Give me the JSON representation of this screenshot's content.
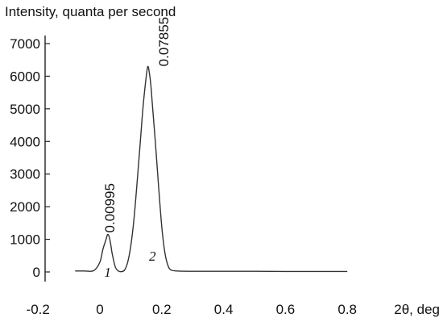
{
  "chart_data": {
    "type": "line",
    "title": "",
    "ylabel": "Intensity, quanta per second",
    "xlabel": "2θ, deg",
    "xlim": [
      -0.2,
      0.8
    ],
    "ylim": [
      0,
      7000
    ],
    "x_ticks": [
      {
        "value": -0.2,
        "label": "-0.2"
      },
      {
        "value": 0,
        "label": "0"
      },
      {
        "value": 0.2,
        "label": "0.2"
      },
      {
        "value": 0.4,
        "label": "0.4"
      },
      {
        "value": 0.6,
        "label": "0.6"
      },
      {
        "value": 0.8,
        "label": "0.8"
      }
    ],
    "y_ticks": [
      {
        "value": 0,
        "label": "0"
      },
      {
        "value": 1000,
        "label": "1000"
      },
      {
        "value": 2000,
        "label": "2000"
      },
      {
        "value": 3000,
        "label": "3000"
      },
      {
        "value": 4000,
        "label": "4000"
      },
      {
        "value": 5000,
        "label": "5000"
      },
      {
        "value": 6000,
        "label": "6000"
      },
      {
        "value": 7000,
        "label": "7000"
      }
    ],
    "grid": false,
    "line_color": "#333333",
    "series": [
      {
        "x": [
          -0.08,
          -0.05,
          -0.02,
          0.0,
          0.01,
          0.02,
          0.025,
          0.03,
          0.035,
          0.04,
          0.05,
          0.06,
          0.07,
          0.08,
          0.09,
          0.1,
          0.11,
          0.12,
          0.13,
          0.14,
          0.15,
          0.155,
          0.16,
          0.165,
          0.17,
          0.18,
          0.19,
          0.2,
          0.21,
          0.22,
          0.23,
          0.25,
          0.3,
          0.4,
          0.5,
          0.6,
          0.7,
          0.8
        ],
        "y": [
          30,
          30,
          40,
          300,
          700,
          1000,
          1150,
          1080,
          850,
          550,
          150,
          30,
          10,
          60,
          300,
          800,
          1600,
          2700,
          3900,
          5100,
          6000,
          6300,
          6100,
          5700,
          5100,
          3900,
          2600,
          1400,
          600,
          200,
          60,
          30,
          20,
          20,
          20,
          15,
          15,
          15
        ]
      }
    ],
    "annotations": [
      {
        "text": "0.00995",
        "x": 0.035,
        "y": 1200,
        "rotation": -90
      },
      {
        "text": "0.07855",
        "x": 0.21,
        "y": 6300,
        "rotation": -90
      },
      {
        "text": "1",
        "x": 0.025,
        "y": -150,
        "italic": true
      },
      {
        "text": "2",
        "x": 0.17,
        "y": 350,
        "italic": true
      }
    ]
  }
}
